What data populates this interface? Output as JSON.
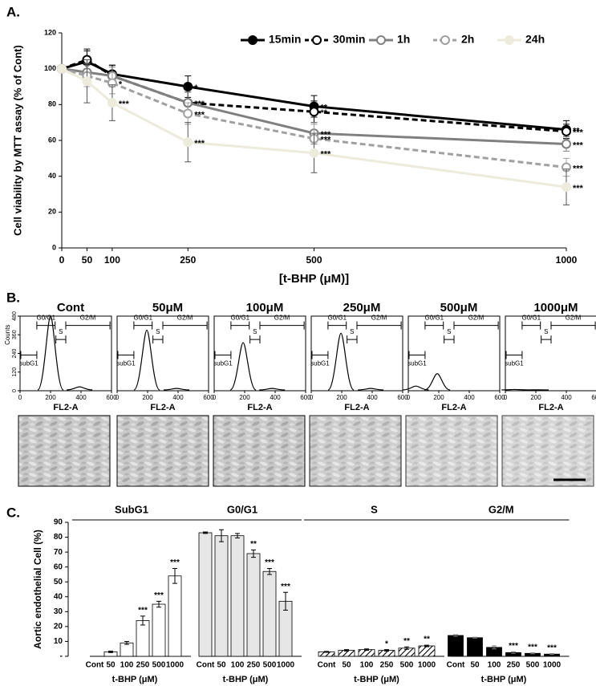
{
  "panel_labels": [
    "A.",
    "B.",
    "C."
  ],
  "chart_data": [
    {
      "type": "line",
      "ylabel": "Cell viability by MTT assay (% of Cont)",
      "xlabel": "[t-BHP (μM)]",
      "x": [
        0,
        50,
        100,
        250,
        500,
        1000
      ],
      "xlim": [
        0,
        1000
      ],
      "xticks": [
        0,
        50,
        100,
        250,
        500,
        1000
      ],
      "ylim": [
        0,
        120
      ],
      "yticks": [
        0,
        20,
        40,
        60,
        80,
        100,
        120
      ],
      "legend": "top-right",
      "series": [
        {
          "name": "15min",
          "color": "#000000",
          "dashed": false,
          "filled": true,
          "values": [
            100,
            104,
            97,
            90,
            79,
            66
          ],
          "errors": [
            0,
            6,
            5,
            6,
            6,
            5
          ],
          "stars": [
            null,
            null,
            null,
            "*",
            "**",
            "**"
          ]
        },
        {
          "name": "30min",
          "color": "#000000",
          "dashed": true,
          "filled": false,
          "values": [
            100,
            105,
            96,
            81,
            76,
            65
          ],
          "errors": [
            0,
            6,
            6,
            6,
            6,
            4
          ],
          "stars": [
            null,
            null,
            null,
            "**",
            "**",
            "***"
          ]
        },
        {
          "name": "1h",
          "color": "#808080",
          "dashed": false,
          "filled": false,
          "values": [
            100,
            98,
            96,
            81,
            64,
            58
          ],
          "errors": [
            0,
            5,
            5,
            6,
            6,
            4
          ],
          "stars": [
            null,
            null,
            null,
            "***",
            "***",
            "***"
          ]
        },
        {
          "name": "2h",
          "color": "#a0a0a0",
          "dashed": true,
          "filled": false,
          "values": [
            100,
            96,
            92,
            75,
            61,
            45
          ],
          "errors": [
            0,
            6,
            6,
            6,
            8,
            5
          ],
          "stars": [
            null,
            null,
            "*",
            "***",
            "***",
            "***"
          ]
        },
        {
          "name": "24h",
          "color": "#ecebdc",
          "dashed": false,
          "filled": true,
          "values": [
            100,
            93,
            81,
            59,
            53,
            34
          ],
          "errors": [
            0,
            12,
            10,
            11,
            11,
            10
          ],
          "stars": [
            null,
            null,
            "***",
            "***",
            "***",
            "***"
          ]
        }
      ]
    },
    {
      "type": "bar",
      "ylabel": "Aortic endothelial Cell (%)",
      "xlabel": "t-BHP (μM)",
      "categories": [
        "Cont",
        "50",
        "100",
        "250",
        "500",
        "1000"
      ],
      "ylim": [
        0,
        90
      ],
      "yticks": [
        {
          "value": 0,
          "label": "-"
        },
        10,
        20,
        30,
        40,
        50,
        60,
        70,
        80,
        90
      ],
      "series": [
        {
          "name": "SubG1",
          "color": "#ffffff",
          "pattern": "solid",
          "values": [
            0,
            3,
            9,
            24,
            35,
            54
          ],
          "errors": [
            0,
            0.5,
            1,
            3,
            2,
            5
          ],
          "stars": [
            null,
            null,
            null,
            "***",
            "***",
            "***"
          ]
        },
        {
          "name": "G0/G1",
          "color": "#e6e6e6",
          "pattern": "solid",
          "values": [
            83,
            81,
            81,
            69,
            57,
            37
          ],
          "errors": [
            0.5,
            4,
            1.5,
            2.5,
            2,
            6
          ],
          "stars": [
            null,
            null,
            null,
            "**",
            "***",
            "***"
          ]
        },
        {
          "name": "S",
          "color": "#000000",
          "pattern": "hatch",
          "values": [
            3,
            4,
            4.5,
            4,
            5.5,
            7
          ],
          "errors": [
            0.3,
            0.5,
            0.5,
            0.5,
            0.8,
            0.5
          ],
          "stars": [
            null,
            null,
            null,
            "*",
            "**",
            "**"
          ]
        },
        {
          "name": "G2/M",
          "color": "#000000",
          "pattern": "solid",
          "values": [
            14,
            12.5,
            6,
            2.5,
            2,
            1.5
          ],
          "errors": [
            0.5,
            0.3,
            1,
            0.5,
            0.3,
            0.3
          ],
          "stars": [
            null,
            null,
            null,
            "***",
            "***",
            "***"
          ]
        }
      ]
    }
  ],
  "flow": {
    "xlabel": "FL2-A",
    "ylabel": "Counts",
    "xlim": [
      0,
      600
    ],
    "xticks": [
      0,
      200,
      400,
      600
    ],
    "ylim": [
      0,
      480
    ],
    "yticks": [
      0,
      120,
      240,
      360,
      480
    ],
    "gates": [
      "G0/G1",
      "S",
      "G2/M",
      "subG1"
    ],
    "panels": [
      {
        "title": "Cont",
        "peaks": [
          [
            200,
            480
          ],
          [
            390,
            25
          ]
        ]
      },
      {
        "title": "50μM",
        "peaks": [
          [
            195,
            390
          ],
          [
            390,
            15
          ]
        ]
      },
      {
        "title": "100μM",
        "peaks": [
          [
            190,
            310
          ],
          [
            380,
            15
          ]
        ]
      },
      {
        "title": "250μM",
        "peaks": [
          [
            195,
            370
          ],
          [
            390,
            15
          ]
        ]
      },
      {
        "title": "500μM",
        "peaks": [
          [
            50,
            30
          ],
          [
            190,
            110
          ]
        ]
      },
      {
        "title": "1000μM",
        "peaks": [
          [
            60,
            8
          ],
          [
            200,
            6
          ]
        ]
      }
    ]
  }
}
